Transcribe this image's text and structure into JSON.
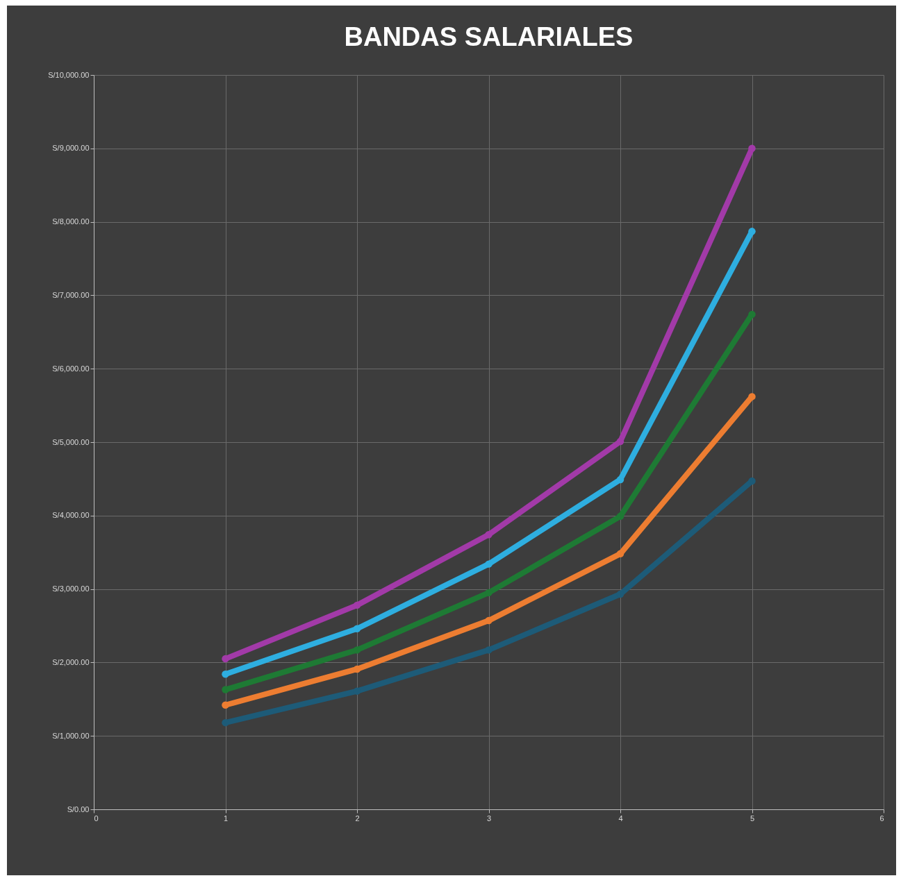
{
  "chart_data": {
    "type": "line",
    "title": "BANDAS SALARIALES",
    "x": [
      1,
      2,
      3,
      4,
      5
    ],
    "series": [
      {
        "color": "#1d5b78",
        "values": [
          1180,
          1610,
          2170,
          2930,
          4470
        ]
      },
      {
        "color": "#ed7d31",
        "values": [
          1420,
          1910,
          2570,
          3480,
          5620
        ]
      },
      {
        "color": "#1e7a34",
        "values": [
          1630,
          2170,
          2950,
          3990,
          6740
        ]
      },
      {
        "color": "#2eaee0",
        "values": [
          1840,
          2460,
          3340,
          4490,
          7870
        ]
      },
      {
        "color": "#a23aa8",
        "values": [
          2050,
          2780,
          3740,
          5010,
          9000
        ]
      }
    ],
    "xlim": [
      0,
      6
    ],
    "xticks": [
      0,
      1,
      2,
      3,
      4,
      5,
      6
    ],
    "ylim": [
      0,
      10000
    ],
    "yticks": [
      {
        "value": 0,
        "label": "S/0.00"
      },
      {
        "value": 1000,
        "label": "S/1,000.00"
      },
      {
        "value": 2000,
        "label": "S/2,000.00"
      },
      {
        "value": 3000,
        "label": "S/3,000.00"
      },
      {
        "value": 4000,
        "label": "S/4,000.00"
      },
      {
        "value": 5000,
        "label": "S/5,000.00"
      },
      {
        "value": 6000,
        "label": "S/6,000.00"
      },
      {
        "value": 7000,
        "label": "S/7,000.00"
      },
      {
        "value": 8000,
        "label": "S/8,000.00"
      },
      {
        "value": 9000,
        "label": "S/9,000.00"
      },
      {
        "value": 10000,
        "label": "S/10,000.00"
      }
    ],
    "grid": true,
    "marker": "circle",
    "line_style": "solid"
  }
}
